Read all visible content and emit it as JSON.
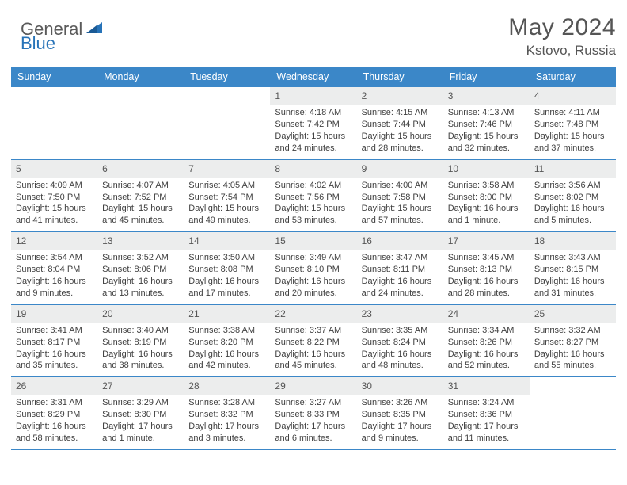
{
  "logo": {
    "part1": "General",
    "part2": "Blue"
  },
  "title": "May 2024",
  "location": "Kstovo, Russia",
  "colors": {
    "header_bg": "#3b87c8",
    "header_text": "#ffffff",
    "daynum_bg": "#eceded",
    "rule": "#3b87c8",
    "logo_blue": "#2773b8",
    "logo_gray": "#5a5a5a",
    "body_text": "#404040"
  },
  "day_headers": [
    "Sunday",
    "Monday",
    "Tuesday",
    "Wednesday",
    "Thursday",
    "Friday",
    "Saturday"
  ],
  "weeks": [
    [
      {
        "n": "",
        "lines": []
      },
      {
        "n": "",
        "lines": []
      },
      {
        "n": "",
        "lines": []
      },
      {
        "n": "1",
        "lines": [
          "Sunrise: 4:18 AM",
          "Sunset: 7:42 PM",
          "Daylight: 15 hours",
          "and 24 minutes."
        ]
      },
      {
        "n": "2",
        "lines": [
          "Sunrise: 4:15 AM",
          "Sunset: 7:44 PM",
          "Daylight: 15 hours",
          "and 28 minutes."
        ]
      },
      {
        "n": "3",
        "lines": [
          "Sunrise: 4:13 AM",
          "Sunset: 7:46 PM",
          "Daylight: 15 hours",
          "and 32 minutes."
        ]
      },
      {
        "n": "4",
        "lines": [
          "Sunrise: 4:11 AM",
          "Sunset: 7:48 PM",
          "Daylight: 15 hours",
          "and 37 minutes."
        ]
      }
    ],
    [
      {
        "n": "5",
        "lines": [
          "Sunrise: 4:09 AM",
          "Sunset: 7:50 PM",
          "Daylight: 15 hours",
          "and 41 minutes."
        ]
      },
      {
        "n": "6",
        "lines": [
          "Sunrise: 4:07 AM",
          "Sunset: 7:52 PM",
          "Daylight: 15 hours",
          "and 45 minutes."
        ]
      },
      {
        "n": "7",
        "lines": [
          "Sunrise: 4:05 AM",
          "Sunset: 7:54 PM",
          "Daylight: 15 hours",
          "and 49 minutes."
        ]
      },
      {
        "n": "8",
        "lines": [
          "Sunrise: 4:02 AM",
          "Sunset: 7:56 PM",
          "Daylight: 15 hours",
          "and 53 minutes."
        ]
      },
      {
        "n": "9",
        "lines": [
          "Sunrise: 4:00 AM",
          "Sunset: 7:58 PM",
          "Daylight: 15 hours",
          "and 57 minutes."
        ]
      },
      {
        "n": "10",
        "lines": [
          "Sunrise: 3:58 AM",
          "Sunset: 8:00 PM",
          "Daylight: 16 hours",
          "and 1 minute."
        ]
      },
      {
        "n": "11",
        "lines": [
          "Sunrise: 3:56 AM",
          "Sunset: 8:02 PM",
          "Daylight: 16 hours",
          "and 5 minutes."
        ]
      }
    ],
    [
      {
        "n": "12",
        "lines": [
          "Sunrise: 3:54 AM",
          "Sunset: 8:04 PM",
          "Daylight: 16 hours",
          "and 9 minutes."
        ]
      },
      {
        "n": "13",
        "lines": [
          "Sunrise: 3:52 AM",
          "Sunset: 8:06 PM",
          "Daylight: 16 hours",
          "and 13 minutes."
        ]
      },
      {
        "n": "14",
        "lines": [
          "Sunrise: 3:50 AM",
          "Sunset: 8:08 PM",
          "Daylight: 16 hours",
          "and 17 minutes."
        ]
      },
      {
        "n": "15",
        "lines": [
          "Sunrise: 3:49 AM",
          "Sunset: 8:10 PM",
          "Daylight: 16 hours",
          "and 20 minutes."
        ]
      },
      {
        "n": "16",
        "lines": [
          "Sunrise: 3:47 AM",
          "Sunset: 8:11 PM",
          "Daylight: 16 hours",
          "and 24 minutes."
        ]
      },
      {
        "n": "17",
        "lines": [
          "Sunrise: 3:45 AM",
          "Sunset: 8:13 PM",
          "Daylight: 16 hours",
          "and 28 minutes."
        ]
      },
      {
        "n": "18",
        "lines": [
          "Sunrise: 3:43 AM",
          "Sunset: 8:15 PM",
          "Daylight: 16 hours",
          "and 31 minutes."
        ]
      }
    ],
    [
      {
        "n": "19",
        "lines": [
          "Sunrise: 3:41 AM",
          "Sunset: 8:17 PM",
          "Daylight: 16 hours",
          "and 35 minutes."
        ]
      },
      {
        "n": "20",
        "lines": [
          "Sunrise: 3:40 AM",
          "Sunset: 8:19 PM",
          "Daylight: 16 hours",
          "and 38 minutes."
        ]
      },
      {
        "n": "21",
        "lines": [
          "Sunrise: 3:38 AM",
          "Sunset: 8:20 PM",
          "Daylight: 16 hours",
          "and 42 minutes."
        ]
      },
      {
        "n": "22",
        "lines": [
          "Sunrise: 3:37 AM",
          "Sunset: 8:22 PM",
          "Daylight: 16 hours",
          "and 45 minutes."
        ]
      },
      {
        "n": "23",
        "lines": [
          "Sunrise: 3:35 AM",
          "Sunset: 8:24 PM",
          "Daylight: 16 hours",
          "and 48 minutes."
        ]
      },
      {
        "n": "24",
        "lines": [
          "Sunrise: 3:34 AM",
          "Sunset: 8:26 PM",
          "Daylight: 16 hours",
          "and 52 minutes."
        ]
      },
      {
        "n": "25",
        "lines": [
          "Sunrise: 3:32 AM",
          "Sunset: 8:27 PM",
          "Daylight: 16 hours",
          "and 55 minutes."
        ]
      }
    ],
    [
      {
        "n": "26",
        "lines": [
          "Sunrise: 3:31 AM",
          "Sunset: 8:29 PM",
          "Daylight: 16 hours",
          "and 58 minutes."
        ]
      },
      {
        "n": "27",
        "lines": [
          "Sunrise: 3:29 AM",
          "Sunset: 8:30 PM",
          "Daylight: 17 hours",
          "and 1 minute."
        ]
      },
      {
        "n": "28",
        "lines": [
          "Sunrise: 3:28 AM",
          "Sunset: 8:32 PM",
          "Daylight: 17 hours",
          "and 3 minutes."
        ]
      },
      {
        "n": "29",
        "lines": [
          "Sunrise: 3:27 AM",
          "Sunset: 8:33 PM",
          "Daylight: 17 hours",
          "and 6 minutes."
        ]
      },
      {
        "n": "30",
        "lines": [
          "Sunrise: 3:26 AM",
          "Sunset: 8:35 PM",
          "Daylight: 17 hours",
          "and 9 minutes."
        ]
      },
      {
        "n": "31",
        "lines": [
          "Sunrise: 3:24 AM",
          "Sunset: 8:36 PM",
          "Daylight: 17 hours",
          "and 11 minutes."
        ]
      },
      {
        "n": "",
        "lines": []
      }
    ]
  ]
}
